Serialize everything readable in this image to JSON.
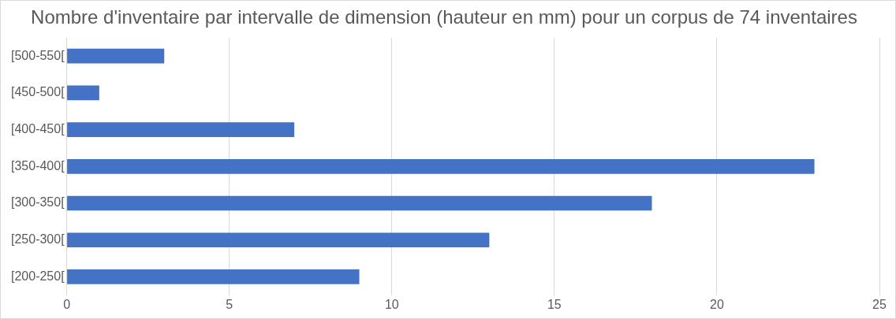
{
  "chart_data": {
    "type": "bar",
    "orientation": "horizontal",
    "title": "Nombre d'inventaire par intervalle de dimension (hauteur en mm) pour un corpus de 74 inventaires",
    "categories": [
      "[500-550[",
      "[450-500[",
      "[400-450[",
      "[350-400[",
      "[300-350[",
      "[250-300[",
      "[200-250["
    ],
    "values": [
      3,
      1,
      7,
      23,
      18,
      13,
      9
    ],
    "color": "#4472c4",
    "xlim": [
      0,
      25
    ],
    "xticks": [
      0,
      5,
      10,
      15,
      20,
      25
    ],
    "grid": "x"
  }
}
